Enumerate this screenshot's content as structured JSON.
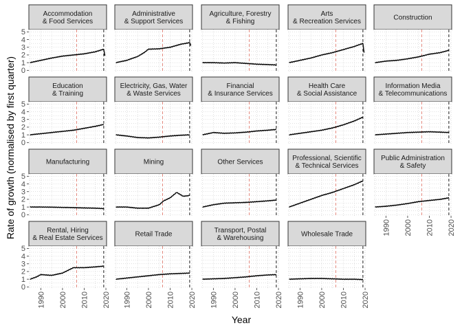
{
  "chart_data": {
    "type": "line",
    "layout": "facet-grid",
    "xlabel": "Year",
    "ylabel": "Rate of growth (normalised by first quarter)",
    "xlim": [
      1984.5,
      2020.3
    ],
    "ylim": [
      -0.15,
      5.3
    ],
    "x_ticks": [
      1990,
      2000,
      2010,
      2020
    ],
    "y_ticks": [
      0,
      1,
      2,
      3,
      4,
      5
    ],
    "grid": true,
    "colors": {
      "strip_fill": "#d9d9d9",
      "strip_border": "#333333",
      "grid": "#bfbfbf",
      "line": "#000000",
      "vline_red": "#e07b6f",
      "vline_black": "#000000"
    },
    "reference_lines": [
      {
        "x": 2006.5,
        "style": "dashed",
        "color": "red"
      },
      {
        "x": 2019.0,
        "style": "dashed",
        "color": "black"
      }
    ],
    "panels": [
      {
        "label": [
          "Accommodation",
          "& Food Services"
        ],
        "x": [
          1985,
          1990,
          1995,
          2000,
          2005,
          2010,
          2015,
          2019,
          2019.5
        ],
        "values": [
          1.0,
          1.3,
          1.6,
          1.85,
          2.0,
          2.15,
          2.4,
          2.75,
          1.9
        ]
      },
      {
        "label": [
          "Administrative",
          "& Support Services"
        ],
        "x": [
          1985,
          1990,
          1995,
          1998,
          2000,
          2005,
          2010,
          2015,
          2019,
          2019.5
        ],
        "values": [
          1.0,
          1.3,
          1.8,
          2.3,
          2.75,
          2.8,
          3.0,
          3.4,
          3.6,
          3.2
        ]
      },
      {
        "label": [
          "Agriculture, Forestry",
          "& Fishing"
        ],
        "x": [
          1985,
          1990,
          1995,
          2000,
          2005,
          2010,
          2015,
          2019
        ],
        "values": [
          1.0,
          1.0,
          0.95,
          1.0,
          0.9,
          0.8,
          0.75,
          0.7
        ]
      },
      {
        "label": [
          "Arts",
          "& Recreation Services"
        ],
        "x": [
          1985,
          1990,
          1995,
          2000,
          2005,
          2010,
          2015,
          2019,
          2019.5
        ],
        "values": [
          1.0,
          1.3,
          1.6,
          2.0,
          2.3,
          2.7,
          3.1,
          3.5,
          2.3
        ]
      },
      {
        "label": [
          "Construction"
        ],
        "x": [
          1985,
          1990,
          1995,
          2000,
          2005,
          2010,
          2015,
          2019
        ],
        "values": [
          1.0,
          1.2,
          1.3,
          1.5,
          1.75,
          2.1,
          2.3,
          2.6
        ]
      },
      {
        "label": [
          "Education",
          "& Training"
        ],
        "x": [
          1985,
          1990,
          1995,
          2000,
          2005,
          2010,
          2015,
          2019
        ],
        "values": [
          1.0,
          1.15,
          1.3,
          1.45,
          1.6,
          1.85,
          2.1,
          2.35
        ]
      },
      {
        "label": [
          "Electricity, Gas, Water",
          "& Waste Services"
        ],
        "x": [
          1985,
          1990,
          1995,
          2000,
          2005,
          2010,
          2015,
          2019
        ],
        "values": [
          1.0,
          0.85,
          0.65,
          0.6,
          0.7,
          0.85,
          0.95,
          1.0
        ]
      },
      {
        "label": [
          "Financial",
          "& Insurance Services"
        ],
        "x": [
          1985,
          1990,
          1995,
          2000,
          2005,
          2010,
          2015,
          2019
        ],
        "values": [
          1.0,
          1.3,
          1.2,
          1.25,
          1.35,
          1.5,
          1.6,
          1.7
        ]
      },
      {
        "label": [
          "Health Care",
          "& Social Assistance"
        ],
        "x": [
          1985,
          1990,
          1995,
          2000,
          2005,
          2010,
          2015,
          2019
        ],
        "values": [
          1.0,
          1.2,
          1.4,
          1.6,
          1.9,
          2.3,
          2.8,
          3.3
        ]
      },
      {
        "label": [
          "Information Media",
          "& Telecommunications"
        ],
        "x": [
          1985,
          1990,
          1995,
          2000,
          2005,
          2010,
          2015,
          2019
        ],
        "values": [
          1.0,
          1.1,
          1.2,
          1.3,
          1.35,
          1.4,
          1.35,
          1.3
        ]
      },
      {
        "label": [
          "Manufacturing"
        ],
        "x": [
          1985,
          1990,
          1995,
          2000,
          2005,
          2010,
          2015,
          2019
        ],
        "values": [
          1.0,
          1.0,
          0.98,
          0.95,
          0.92,
          0.88,
          0.85,
          0.8
        ]
      },
      {
        "label": [
          "Mining"
        ],
        "x": [
          1985,
          1990,
          1995,
          2000,
          2005,
          2007,
          2010,
          2013,
          2016,
          2019
        ],
        "values": [
          1.0,
          1.0,
          0.85,
          0.85,
          1.3,
          1.8,
          2.2,
          2.9,
          2.4,
          2.5
        ]
      },
      {
        "label": [
          "Other Services"
        ],
        "x": [
          1985,
          1990,
          1995,
          2000,
          2005,
          2010,
          2015,
          2019
        ],
        "values": [
          1.0,
          1.3,
          1.5,
          1.55,
          1.6,
          1.7,
          1.8,
          1.9
        ]
      },
      {
        "label": [
          "Professional, Scientific",
          "& Technical Services"
        ],
        "x": [
          1985,
          1990,
          1995,
          2000,
          2005,
          2010,
          2015,
          2019
        ],
        "values": [
          1.0,
          1.5,
          2.0,
          2.5,
          2.9,
          3.4,
          3.9,
          4.4
        ]
      },
      {
        "label": [
          "Public Administration",
          "& Safety"
        ],
        "x": [
          1985,
          1990,
          1995,
          2000,
          2005,
          2010,
          2015,
          2019
        ],
        "values": [
          1.0,
          1.1,
          1.25,
          1.45,
          1.7,
          1.85,
          2.0,
          2.2
        ]
      },
      {
        "label": [
          "Rental, Hiring",
          "& Real Estate Services"
        ],
        "x": [
          1985,
          1988,
          1990,
          1995,
          2000,
          2005,
          2010,
          2015,
          2019
        ],
        "values": [
          1.0,
          1.3,
          1.6,
          1.5,
          1.8,
          2.5,
          2.5,
          2.6,
          2.7
        ]
      },
      {
        "label": [
          "Retail Trade"
        ],
        "x": [
          1985,
          1990,
          1995,
          2000,
          2005,
          2010,
          2015,
          2019
        ],
        "values": [
          1.0,
          1.15,
          1.3,
          1.45,
          1.6,
          1.7,
          1.75,
          1.8
        ]
      },
      {
        "label": [
          "Transport, Postal",
          "& Warehousing"
        ],
        "x": [
          1985,
          1990,
          1995,
          2000,
          2005,
          2010,
          2015,
          2019
        ],
        "values": [
          1.0,
          1.05,
          1.1,
          1.2,
          1.3,
          1.45,
          1.55,
          1.6
        ]
      },
      {
        "label": [
          "Wholesale Trade"
        ],
        "x": [
          1985,
          1990,
          1995,
          2000,
          2005,
          2010,
          2015,
          2019
        ],
        "values": [
          1.0,
          1.05,
          1.1,
          1.1,
          1.05,
          1.0,
          1.0,
          0.95
        ]
      }
    ]
  }
}
